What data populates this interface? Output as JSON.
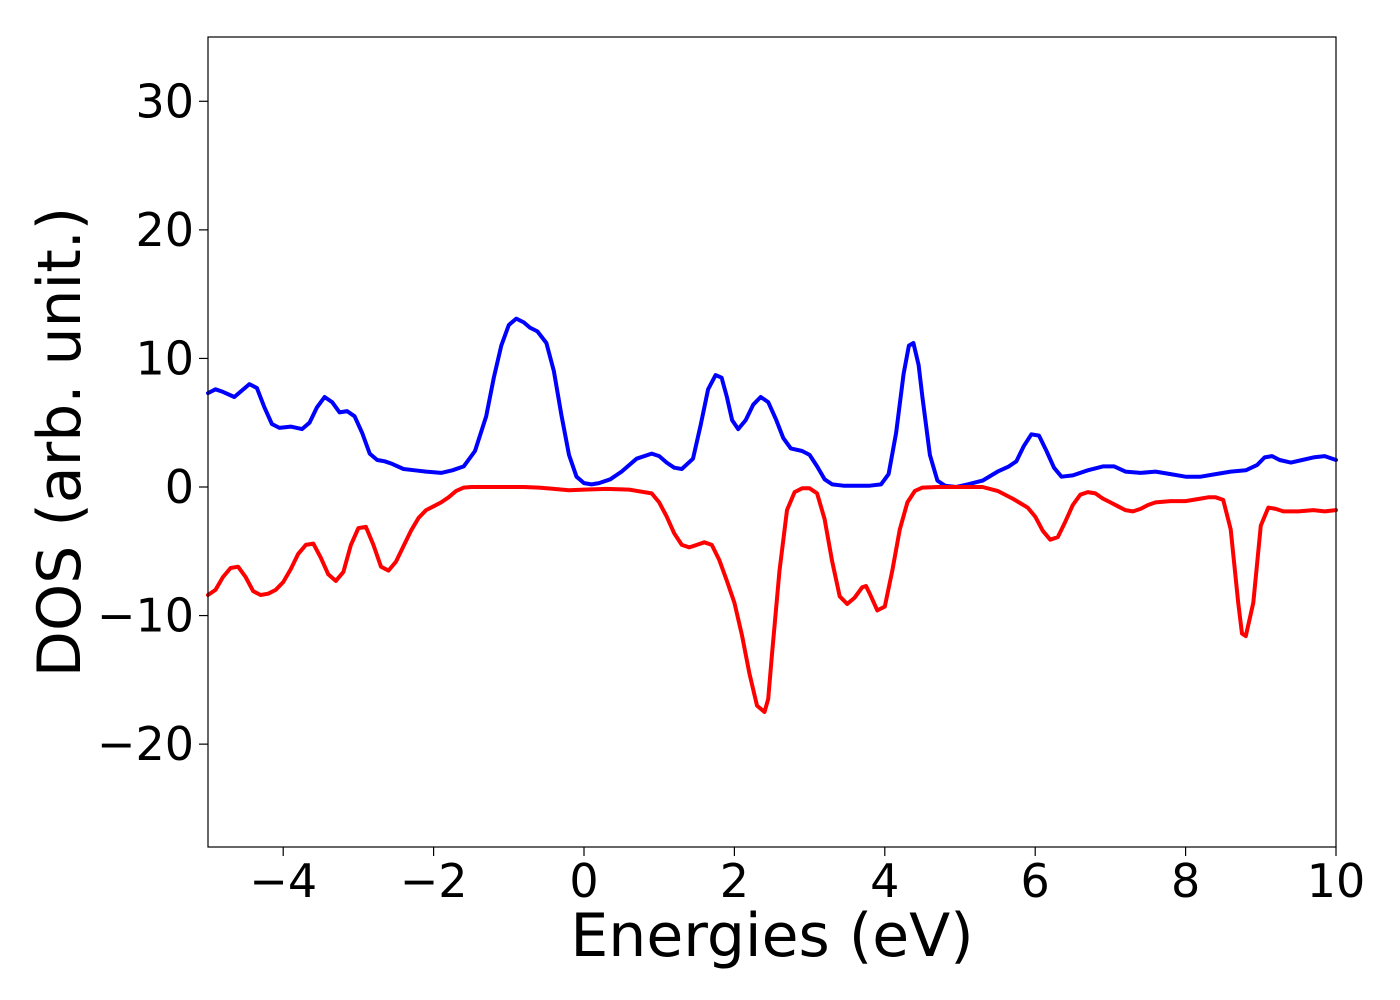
{
  "chart_data": {
    "type": "line",
    "title": "",
    "xlabel": "Energies (eV)",
    "ylabel": "DOS (arb. unit.)",
    "xlim": [
      -5,
      10
    ],
    "ylim": [
      -28,
      35
    ],
    "grid": false,
    "legend": "none",
    "xticks": [
      -4,
      -2,
      0,
      2,
      4,
      6,
      8,
      10
    ],
    "xtick_labels": [
      "−4",
      "−2",
      "0",
      "2",
      "4",
      "6",
      "8",
      "10"
    ],
    "yticks": [
      -20,
      -10,
      0,
      10,
      20,
      30
    ],
    "ytick_labels": [
      "−20",
      "−10",
      "0",
      "10",
      "20",
      "30"
    ],
    "series": [
      {
        "color": "#0000ff",
        "x": [
          -5.0,
          -4.9,
          -4.8,
          -4.65,
          -4.55,
          -4.45,
          -4.35,
          -4.25,
          -4.15,
          -4.05,
          -3.9,
          -3.75,
          -3.65,
          -3.55,
          -3.45,
          -3.35,
          -3.25,
          -3.15,
          -3.05,
          -2.95,
          -2.85,
          -2.75,
          -2.65,
          -2.55,
          -2.4,
          -2.25,
          -2.1,
          -1.9,
          -1.75,
          -1.6,
          -1.45,
          -1.3,
          -1.2,
          -1.1,
          -1.0,
          -0.9,
          -0.8,
          -0.72,
          -0.62,
          -0.5,
          -0.4,
          -0.3,
          -0.2,
          -0.1,
          0.0,
          0.1,
          0.2,
          0.35,
          0.5,
          0.7,
          0.9,
          1.0,
          1.1,
          1.2,
          1.3,
          1.45,
          1.55,
          1.65,
          1.75,
          1.83,
          1.9,
          1.97,
          2.05,
          2.15,
          2.25,
          2.35,
          2.45,
          2.55,
          2.65,
          2.75,
          2.9,
          3.0,
          3.1,
          3.2,
          3.3,
          3.45,
          3.6,
          3.8,
          3.95,
          4.05,
          4.15,
          4.25,
          4.32,
          4.38,
          4.45,
          4.5,
          4.6,
          4.7,
          4.8,
          4.95,
          5.1,
          5.3,
          5.5,
          5.65,
          5.75,
          5.85,
          5.95,
          6.05,
          6.15,
          6.25,
          6.35,
          6.5,
          6.7,
          6.9,
          7.05,
          7.2,
          7.4,
          7.6,
          7.8,
          8.0,
          8.2,
          8.4,
          8.6,
          8.8,
          8.95,
          9.05,
          9.15,
          9.25,
          9.4,
          9.55,
          9.7,
          9.85,
          10.0
        ],
        "y": [
          7.3,
          7.6,
          7.4,
          7.0,
          7.5,
          8.0,
          7.7,
          6.2,
          4.9,
          4.6,
          4.7,
          4.5,
          5.0,
          6.2,
          7.0,
          6.6,
          5.8,
          5.9,
          5.5,
          4.2,
          2.6,
          2.1,
          2.0,
          1.8,
          1.4,
          1.3,
          1.2,
          1.1,
          1.3,
          1.6,
          2.8,
          5.5,
          8.5,
          11.0,
          12.6,
          13.1,
          12.8,
          12.4,
          12.1,
          11.2,
          9.0,
          5.6,
          2.5,
          0.8,
          0.3,
          0.2,
          0.3,
          0.6,
          1.2,
          2.2,
          2.6,
          2.4,
          1.9,
          1.5,
          1.4,
          2.2,
          4.8,
          7.6,
          8.7,
          8.5,
          7.0,
          5.2,
          4.5,
          5.2,
          6.4,
          7.0,
          6.6,
          5.3,
          3.8,
          3.0,
          2.8,
          2.5,
          1.6,
          0.6,
          0.2,
          0.1,
          0.1,
          0.1,
          0.2,
          1.0,
          4.2,
          8.8,
          11.0,
          11.2,
          9.5,
          7.0,
          2.5,
          0.5,
          0.1,
          0.0,
          0.2,
          0.5,
          1.2,
          1.6,
          2.0,
          3.2,
          4.1,
          4.0,
          2.8,
          1.5,
          0.8,
          0.9,
          1.3,
          1.6,
          1.6,
          1.2,
          1.1,
          1.2,
          1.0,
          0.8,
          0.8,
          1.0,
          1.2,
          1.3,
          1.7,
          2.3,
          2.4,
          2.1,
          1.9,
          2.1,
          2.3,
          2.4,
          2.1
        ]
      },
      {
        "color": "#ff0000",
        "x": [
          -5.0,
          -4.9,
          -4.8,
          -4.7,
          -4.6,
          -4.5,
          -4.4,
          -4.3,
          -4.2,
          -4.1,
          -4.0,
          -3.9,
          -3.8,
          -3.7,
          -3.6,
          -3.5,
          -3.4,
          -3.3,
          -3.2,
          -3.1,
          -3.0,
          -2.9,
          -2.8,
          -2.7,
          -2.6,
          -2.5,
          -2.4,
          -2.3,
          -2.2,
          -2.1,
          -2.0,
          -1.9,
          -1.8,
          -1.7,
          -1.6,
          -1.5,
          -1.4,
          -1.2,
          -1.0,
          -0.8,
          -0.6,
          -0.4,
          -0.2,
          0.0,
          0.3,
          0.6,
          0.9,
          1.0,
          1.1,
          1.2,
          1.3,
          1.4,
          1.5,
          1.6,
          1.7,
          1.8,
          1.9,
          2.0,
          2.1,
          2.2,
          2.3,
          2.4,
          2.45,
          2.5,
          2.6,
          2.7,
          2.8,
          2.9,
          3.0,
          3.1,
          3.2,
          3.3,
          3.4,
          3.5,
          3.6,
          3.7,
          3.75,
          3.8,
          3.9,
          4.0,
          4.1,
          4.2,
          4.3,
          4.4,
          4.5,
          4.7,
          5.0,
          5.3,
          5.5,
          5.7,
          5.9,
          6.0,
          6.1,
          6.2,
          6.3,
          6.4,
          6.5,
          6.6,
          6.7,
          6.8,
          6.9,
          7.0,
          7.1,
          7.2,
          7.3,
          7.4,
          7.5,
          7.6,
          7.8,
          8.0,
          8.2,
          8.3,
          8.4,
          8.5,
          8.6,
          8.7,
          8.75,
          8.8,
          8.9,
          9.0,
          9.1,
          9.2,
          9.3,
          9.5,
          9.7,
          9.85,
          10.0
        ],
        "y": [
          -8.4,
          -8.0,
          -7.0,
          -6.3,
          -6.2,
          -7.0,
          -8.1,
          -8.4,
          -8.3,
          -8.0,
          -7.4,
          -6.4,
          -5.2,
          -4.5,
          -4.4,
          -5.5,
          -6.8,
          -7.3,
          -6.6,
          -4.5,
          -3.2,
          -3.1,
          -4.5,
          -6.2,
          -6.5,
          -5.8,
          -4.6,
          -3.4,
          -2.4,
          -1.8,
          -1.5,
          -1.2,
          -0.8,
          -0.3,
          -0.05,
          0.0,
          0.0,
          0.0,
          0.0,
          0.0,
          -0.05,
          -0.15,
          -0.25,
          -0.2,
          -0.15,
          -0.2,
          -0.5,
          -1.2,
          -2.3,
          -3.6,
          -4.5,
          -4.7,
          -4.5,
          -4.3,
          -4.5,
          -5.7,
          -7.3,
          -9.0,
          -11.5,
          -14.5,
          -17.0,
          -17.5,
          -16.5,
          -13.0,
          -6.5,
          -1.8,
          -0.4,
          -0.1,
          -0.1,
          -0.5,
          -2.5,
          -5.8,
          -8.5,
          -9.1,
          -8.6,
          -7.8,
          -7.7,
          -8.3,
          -9.6,
          -9.3,
          -6.5,
          -3.3,
          -1.2,
          -0.3,
          -0.05,
          0.0,
          0.0,
          0.0,
          -0.3,
          -0.9,
          -1.6,
          -2.3,
          -3.4,
          -4.1,
          -3.9,
          -2.7,
          -1.4,
          -0.6,
          -0.4,
          -0.5,
          -0.9,
          -1.2,
          -1.5,
          -1.8,
          -1.9,
          -1.7,
          -1.4,
          -1.2,
          -1.1,
          -1.1,
          -0.9,
          -0.8,
          -0.8,
          -1.0,
          -3.3,
          -9.0,
          -11.4,
          -11.6,
          -9.0,
          -3.0,
          -1.6,
          -1.7,
          -1.9,
          -1.9,
          -1.8,
          -1.9,
          -1.8
        ]
      }
    ]
  }
}
